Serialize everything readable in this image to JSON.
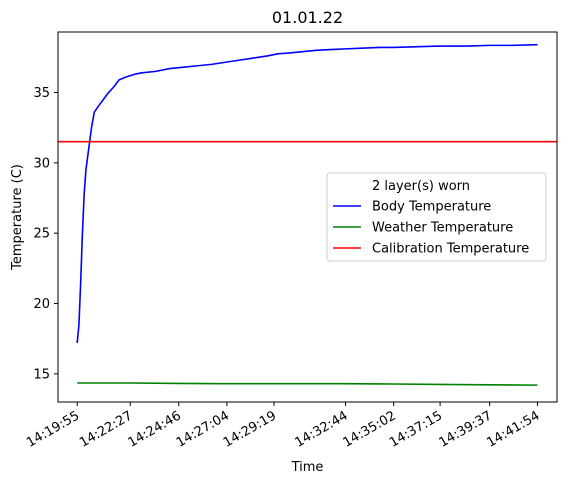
{
  "chart_data": {
    "type": "line",
    "title": "01.01.22",
    "xlabel": "Time",
    "ylabel": "Temperature (C)",
    "xlim": [
      "14:19:00",
      "14:42:50"
    ],
    "ylim": [
      13.0,
      39.3
    ],
    "grid": false,
    "yticks": [
      15,
      20,
      25,
      30,
      35
    ],
    "xticks": [
      "14:19:55",
      "14:22:27",
      "14:24:46",
      "14:27:04",
      "14:29:19",
      "14:32:44",
      "14:35:02",
      "14:37:15",
      "14:39:37",
      "14:41:54"
    ],
    "legend": {
      "title": "2 layer(s) worn",
      "placement": "center-right"
    },
    "series": [
      {
        "name": "Body Temperature",
        "color": "#0000ff",
        "points": [
          [
            "14:19:55",
            17.2
          ],
          [
            "14:20:00",
            18.5
          ],
          [
            "14:20:05",
            21.5
          ],
          [
            "14:20:10",
            25.0
          ],
          [
            "14:20:15",
            27.8
          ],
          [
            "14:20:20",
            29.5
          ],
          [
            "14:20:28",
            31.0
          ],
          [
            "14:20:36",
            32.5
          ],
          [
            "14:20:44",
            33.6
          ],
          [
            "14:20:55",
            34.0
          ],
          [
            "14:21:10",
            34.5
          ],
          [
            "14:21:25",
            35.0
          ],
          [
            "14:21:40",
            35.4
          ],
          [
            "14:21:55",
            35.9
          ],
          [
            "14:22:15",
            36.1
          ],
          [
            "14:22:40",
            36.3
          ],
          [
            "14:23:00",
            36.4
          ],
          [
            "14:23:40",
            36.5
          ],
          [
            "14:24:20",
            36.7
          ],
          [
            "14:25:00",
            36.8
          ],
          [
            "14:25:40",
            36.9
          ],
          [
            "14:26:20",
            37.0
          ],
          [
            "14:27:00",
            37.15
          ],
          [
            "14:27:40",
            37.3
          ],
          [
            "14:28:20",
            37.45
          ],
          [
            "14:29:00",
            37.6
          ],
          [
            "14:29:30",
            37.75
          ],
          [
            "14:30:00",
            37.8
          ],
          [
            "14:30:40",
            37.9
          ],
          [
            "14:31:20",
            38.0
          ],
          [
            "14:32:00",
            38.05
          ],
          [
            "14:32:44",
            38.1
          ],
          [
            "14:33:30",
            38.15
          ],
          [
            "14:34:20",
            38.2
          ],
          [
            "14:35:02",
            38.2
          ],
          [
            "14:36:00",
            38.25
          ],
          [
            "14:37:15",
            38.3
          ],
          [
            "14:38:30",
            38.3
          ],
          [
            "14:39:37",
            38.35
          ],
          [
            "14:40:40",
            38.35
          ],
          [
            "14:41:54",
            38.4
          ]
        ]
      },
      {
        "name": "Weather Temperature",
        "color": "#008000",
        "points": [
          [
            "14:19:55",
            14.35
          ],
          [
            "14:22:27",
            14.35
          ],
          [
            "14:24:46",
            14.32
          ],
          [
            "14:27:04",
            14.3
          ],
          [
            "14:29:19",
            14.3
          ],
          [
            "14:32:44",
            14.3
          ],
          [
            "14:35:02",
            14.28
          ],
          [
            "14:37:15",
            14.25
          ],
          [
            "14:39:37",
            14.22
          ],
          [
            "14:41:54",
            14.2
          ]
        ]
      },
      {
        "name": "Calibration Temperature",
        "color": "#ff0000",
        "constant": 31.5
      }
    ]
  }
}
